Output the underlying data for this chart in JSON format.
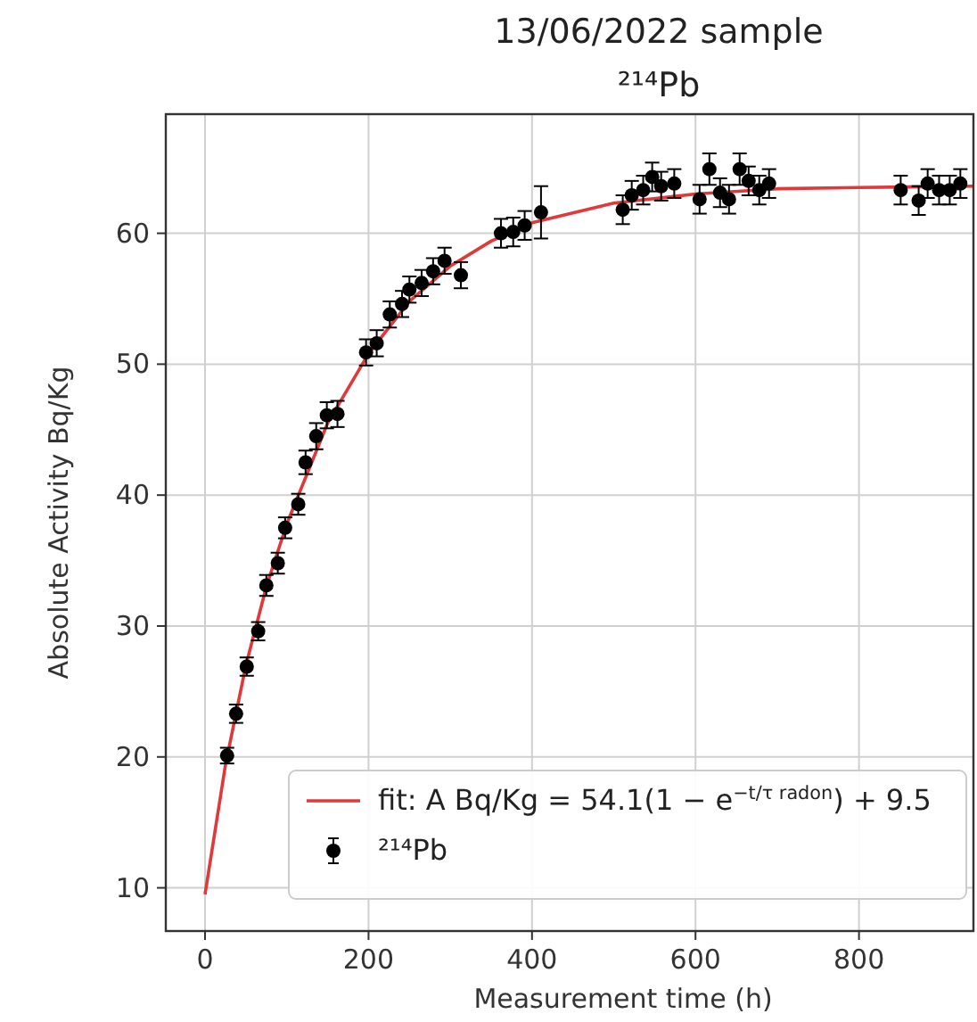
{
  "chart_data": {
    "type": "scatter",
    "title": "13/06/2022 sample",
    "subtitle": "²¹⁴Pb",
    "xlabel": "Measurement time (h)",
    "ylabel": "Absolute Activity Bq/Kg",
    "xlim": [
      -48,
      940
    ],
    "ylim": [
      6.7,
      69.1
    ],
    "xticks": [
      0,
      200,
      400,
      600,
      800
    ],
    "yticks": [
      10,
      20,
      30,
      40,
      50,
      60
    ],
    "grid": true,
    "legend": "bottom right",
    "series": [
      {
        "type": "line",
        "name": "fit: A Bq/Kg = 54.1(1 − e$^{−t/τ radon}$) + 9.5",
        "color": "#e0393b",
        "marker": "none",
        "x": [
          0,
          25,
          50,
          75,
          100,
          150,
          200,
          250,
          300,
          350,
          400,
          500,
          600,
          700,
          800,
          940
        ],
        "values": [
          9.5,
          19.4,
          27.0,
          33.0,
          37.8,
          45.5,
          50.8,
          54.8,
          57.5,
          59.4,
          60.8,
          62.3,
          63.0,
          63.4,
          63.5,
          63.6
        ]
      },
      {
        "name": "²¹⁴Pb",
        "color": "#000000",
        "marker": "circle",
        "x": [
          27,
          38,
          51,
          65,
          75,
          89,
          98,
          114,
          123,
          136,
          149,
          162,
          197,
          210,
          226,
          241,
          250,
          265,
          279,
          293,
          313,
          362,
          377,
          391,
          411,
          511,
          522,
          536,
          547,
          558,
          574,
          605,
          617,
          630,
          641,
          654,
          665,
          678,
          690,
          851,
          873,
          884,
          898,
          911,
          924
        ],
        "values": [
          20.1,
          23.3,
          26.9,
          29.6,
          33.1,
          34.8,
          37.5,
          39.3,
          42.5,
          44.5,
          46.1,
          46.2,
          50.9,
          51.6,
          53.8,
          54.6,
          55.7,
          56.2,
          57.1,
          57.9,
          56.8,
          60.0,
          60.1,
          60.6,
          61.6,
          61.8,
          62.9,
          63.3,
          64.3,
          63.6,
          63.8,
          62.6,
          64.9,
          63.1,
          62.6,
          64.9,
          64.0,
          63.3,
          63.8,
          63.3,
          62.5,
          63.8,
          63.3,
          63.3,
          63.8
        ],
        "errors": [
          0.6,
          0.7,
          0.7,
          0.7,
          0.8,
          0.8,
          0.8,
          0.8,
          0.9,
          1,
          1,
          1,
          1,
          1,
          1,
          1,
          1,
          1,
          1,
          1,
          1,
          1.1,
          1.1,
          1.1,
          2,
          1.1,
          1.1,
          1.1,
          1.1,
          1.1,
          1.1,
          1.1,
          1.2,
          1.1,
          1.1,
          1.2,
          1.1,
          1.1,
          1.1,
          1.1,
          1.1,
          1.1,
          1.1,
          1.1,
          1.1
        ]
      }
    ]
  }
}
